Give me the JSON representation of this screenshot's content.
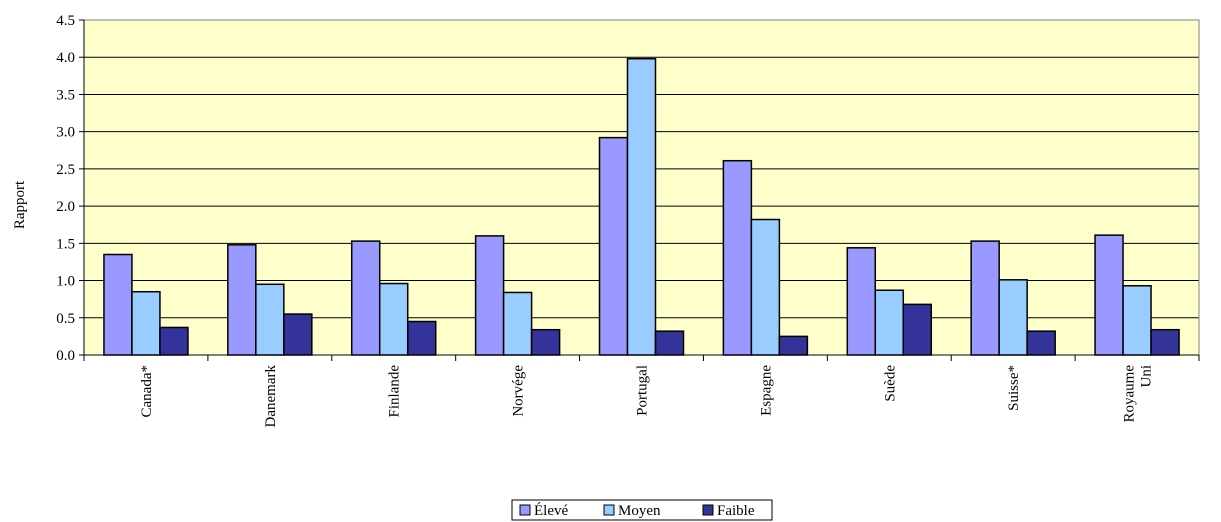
{
  "chart_data": {
    "type": "bar",
    "categories": [
      [
        "Canada*"
      ],
      [
        "Danemark"
      ],
      [
        "Finlande"
      ],
      [
        "Norvége"
      ],
      [
        "Portugal"
      ],
      [
        "Espagne"
      ],
      [
        "Suède"
      ],
      [
        "Suisse*"
      ],
      [
        "Royaume",
        "Uni"
      ]
    ],
    "series": [
      {
        "name": "Élevé",
        "color": "#9999ff",
        "values": [
          1.35,
          1.48,
          1.53,
          1.6,
          2.92,
          2.61,
          1.44,
          1.53,
          1.61
        ]
      },
      {
        "name": "Moyen",
        "color": "#99ccff",
        "values": [
          0.85,
          0.95,
          0.96,
          0.84,
          3.98,
          1.82,
          0.87,
          1.01,
          0.93
        ]
      },
      {
        "name": "Faible",
        "color": "#333399",
        "values": [
          0.37,
          0.55,
          0.45,
          0.34,
          0.32,
          0.25,
          0.68,
          0.32,
          0.34
        ]
      }
    ],
    "ylabel": "Rapport",
    "xlabel": "",
    "title": "",
    "ylim": [
      0,
      4.5
    ],
    "yticks": [
      "0.0",
      "0.5",
      "1.0",
      "1.5",
      "2.0",
      "2.5",
      "3.0",
      "3.5",
      "4.0",
      "4.5"
    ],
    "grid": true,
    "plot_background": "#ffffcc",
    "legend_position": "bottom-center"
  }
}
